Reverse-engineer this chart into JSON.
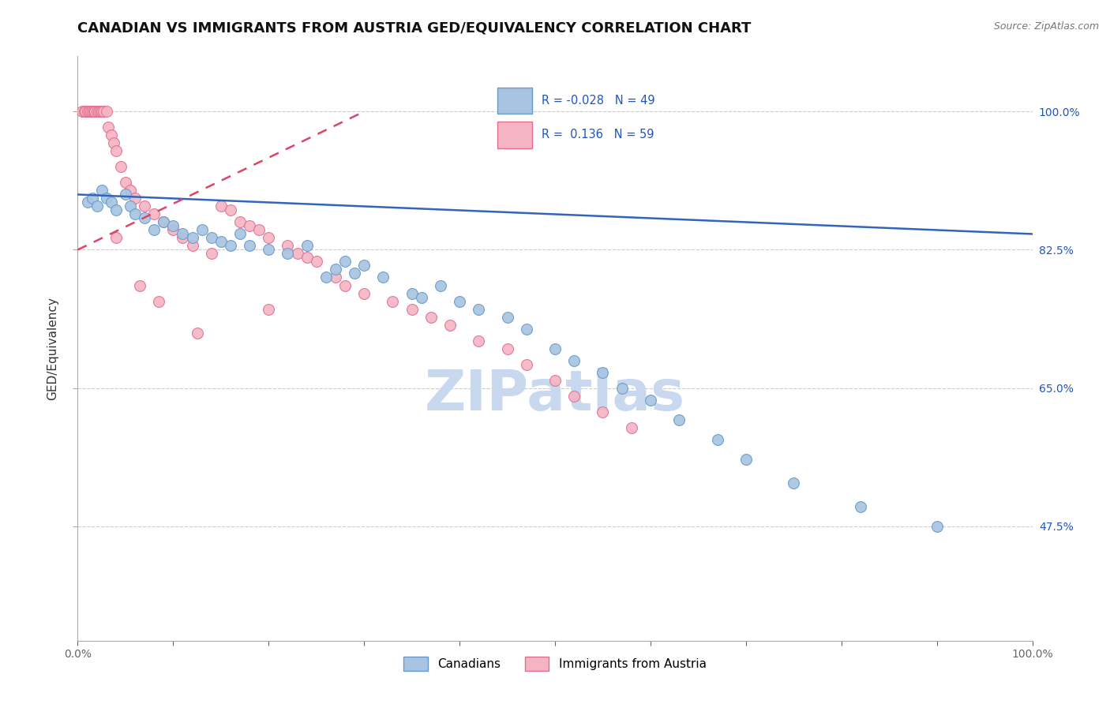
{
  "title": "CANADIAN VS IMMIGRANTS FROM AUSTRIA GED/EQUIVALENCY CORRELATION CHART",
  "source_text": "Source: ZipAtlas.com",
  "ylabel": "GED/Equivalency",
  "xlim": [
    0.0,
    100.0
  ],
  "ylim": [
    33.0,
    107.0
  ],
  "yticks": [
    47.5,
    65.0,
    82.5,
    100.0
  ],
  "ytick_labels": [
    "47.5%",
    "65.0%",
    "82.5%",
    "100.0%"
  ],
  "watermark_text": "ZIPatlas",
  "watermark_color": "#c8d8ee",
  "canadians_color": "#a8c4e0",
  "canadians_edge": "#6699cc",
  "austria_color": "#f4b4c4",
  "austria_edge": "#e07090",
  "trend_canadian_color": "#3366bb",
  "trend_austria_color": "#dd4466",
  "background_color": "#ffffff",
  "grid_color": "#cccccc",
  "canadians_x": [
    1.0,
    1.5,
    2.0,
    2.5,
    3.0,
    3.5,
    4.0,
    5.0,
    5.5,
    6.0,
    7.0,
    8.0,
    9.0,
    10.0,
    11.0,
    12.0,
    13.0,
    14.0,
    15.0,
    16.0,
    17.0,
    18.0,
    20.0,
    22.0,
    24.0,
    26.0,
    27.0,
    28.0,
    29.0,
    30.0,
    32.0,
    35.0,
    36.0,
    38.0,
    40.0,
    42.0,
    45.0,
    47.0,
    50.0,
    52.0,
    55.0,
    57.0,
    60.0,
    63.0,
    67.0,
    70.0,
    75.0,
    82.0,
    90.0
  ],
  "canadians_y": [
    88.5,
    89.0,
    88.0,
    90.0,
    89.0,
    88.5,
    87.5,
    89.5,
    88.0,
    87.0,
    86.5,
    85.0,
    86.0,
    85.5,
    84.5,
    84.0,
    85.0,
    84.0,
    83.5,
    83.0,
    84.5,
    83.0,
    82.5,
    82.0,
    83.0,
    79.0,
    80.0,
    81.0,
    79.5,
    80.5,
    79.0,
    77.0,
    76.5,
    78.0,
    76.0,
    75.0,
    74.0,
    72.5,
    70.0,
    68.5,
    67.0,
    65.0,
    63.5,
    61.0,
    58.5,
    56.0,
    53.0,
    50.0,
    47.5
  ],
  "austria_x": [
    0.5,
    0.7,
    0.8,
    1.0,
    1.2,
    1.4,
    1.5,
    1.7,
    1.8,
    2.0,
    2.2,
    2.4,
    2.5,
    2.7,
    3.0,
    3.2,
    3.5,
    3.8,
    4.0,
    4.5,
    5.0,
    5.5,
    6.0,
    7.0,
    8.0,
    9.0,
    10.0,
    11.0,
    12.0,
    14.0,
    15.0,
    16.0,
    17.0,
    18.0,
    19.0,
    20.0,
    22.0,
    23.0,
    24.0,
    25.0,
    27.0,
    28.0,
    30.0,
    33.0,
    35.0,
    37.0,
    39.0,
    42.0,
    45.0,
    47.0,
    50.0,
    52.0,
    55.0,
    58.0,
    4.0,
    6.5,
    8.5,
    12.5,
    20.0
  ],
  "austria_y": [
    100.0,
    100.0,
    100.0,
    100.0,
    100.0,
    100.0,
    100.0,
    100.0,
    100.0,
    100.0,
    100.0,
    100.0,
    100.0,
    100.0,
    100.0,
    98.0,
    97.0,
    96.0,
    95.0,
    93.0,
    91.0,
    90.0,
    89.0,
    88.0,
    87.0,
    86.0,
    85.0,
    84.0,
    83.0,
    82.0,
    88.0,
    87.5,
    86.0,
    85.5,
    85.0,
    84.0,
    83.0,
    82.0,
    81.5,
    81.0,
    79.0,
    78.0,
    77.0,
    76.0,
    75.0,
    74.0,
    73.0,
    71.0,
    70.0,
    68.0,
    66.0,
    64.0,
    62.0,
    60.0,
    84.0,
    78.0,
    76.0,
    72.0,
    75.0
  ],
  "trend_canadian_start_y": 89.5,
  "trend_canadian_end_y": 84.5,
  "trend_austria_start_y": 82.5,
  "trend_austria_end_y": 100.0,
  "trend_austria_end_x": 30.0,
  "title_fontsize": 13,
  "tick_fontsize": 10,
  "legend_fontsize": 11,
  "watermark_fontsize": 52
}
